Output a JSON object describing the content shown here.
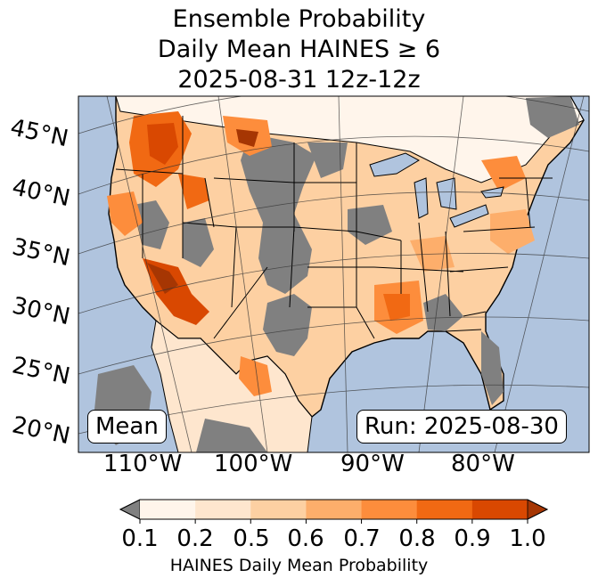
{
  "title": {
    "line1": "Ensemble Probability",
    "line2": "Daily Mean HAINES ≥ 6",
    "line3": "2025-08-31 12z-12z"
  },
  "map": {
    "lat_labels": [
      "45°N",
      "40°N",
      "35°N",
      "30°N",
      "25°N",
      "20°N"
    ],
    "lon_labels": [
      "110°W",
      "100°W",
      "90°W",
      "80°W"
    ],
    "stat_box": "Mean",
    "run_box": "Run: 2025-08-30",
    "colors": {
      "ocean": "#b0c4de",
      "no_data": "#808080",
      "p01": "#fff5eb",
      "p02": "#fee6ce",
      "p05": "#fdd0a2",
      "p06": "#fdae6b",
      "p07": "#fd8d3c",
      "p08": "#f16913",
      "p09": "#d94801",
      "p10": "#a63603"
    }
  },
  "colorbar": {
    "ticks": [
      "0.1",
      "0.2",
      "0.5",
      "0.6",
      "0.7",
      "0.8",
      "0.9",
      "1.0"
    ],
    "label": "HAINES Daily Mean Probability",
    "under_color": "#808080",
    "over_color": "#a63603",
    "segment_colors": [
      "#fff5eb",
      "#fee6ce",
      "#fdd0a2",
      "#fdae6b",
      "#fd8d3c",
      "#f16913",
      "#d94801"
    ]
  }
}
